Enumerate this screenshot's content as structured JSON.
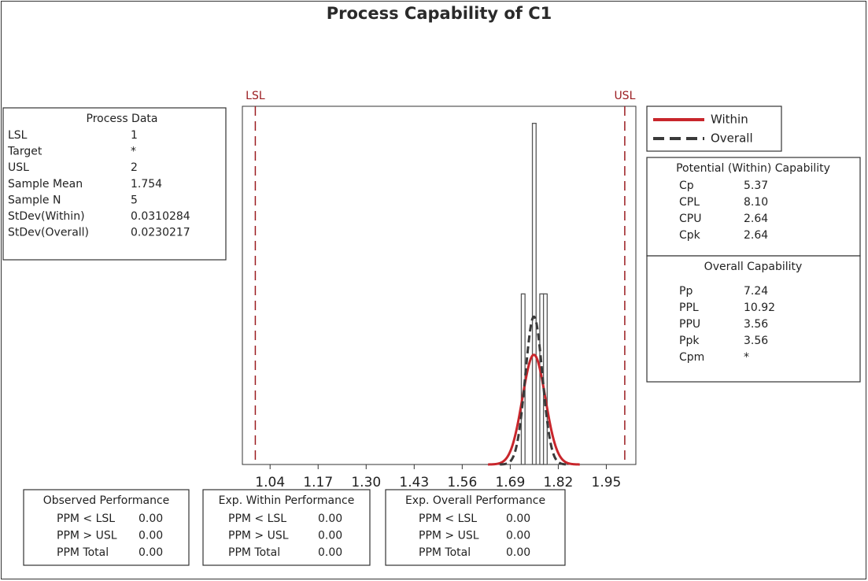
{
  "chart_data": {
    "type": "histogram",
    "title": "Process Capability of C1",
    "bins": [
      1.72,
      1.73,
      1.74,
      1.75,
      1.76,
      1.77,
      1.78,
      1.79
    ],
    "values": [
      1,
      0,
      0,
      2,
      0,
      1,
      1
    ],
    "xlim": [
      0.965,
      2.03
    ],
    "ylim": [
      0,
      2.1
    ],
    "xticks": [
      1.04,
      1.17,
      {
        "value": 1.3,
        "label": "1.30"
      },
      1.43,
      1.56,
      1.69,
      1.82,
      1.95
    ],
    "spec_color": "#9b1c20",
    "bar_color": "#555555",
    "series": [
      {
        "name": "Within",
        "color": "#c8262c",
        "dash": false
      },
      {
        "name": "Overall",
        "color": "#3a3a3a",
        "dash": true
      }
    ],
    "process_data": {
      "title": "Process Data",
      "rows": [
        [
          "LSL",
          1
        ],
        [
          "Target",
          "*"
        ],
        [
          "USL",
          2
        ],
        [
          "Sample Mean",
          1.754
        ],
        [
          "Sample N",
          5
        ],
        [
          "StDev(Within)",
          0.0310284
        ],
        [
          "StDev(Overall)",
          0.0230217
        ]
      ]
    },
    "potential": {
      "title": "Potential (Within) Capability",
      "rows": [
        [
          "Cp",
          "5.37"
        ],
        [
          "CPL",
          "8.10"
        ],
        [
          "CPU",
          "2.64"
        ],
        [
          "Cpk",
          "2.64"
        ]
      ]
    },
    "overall": {
      "title": "Overall Capability",
      "rows": [
        [
          "Pp",
          "7.24"
        ],
        [
          "PPL",
          "10.92"
        ],
        [
          "PPU",
          "3.56"
        ],
        [
          "Ppk",
          "3.56"
        ],
        [
          "Cpm",
          "*"
        ]
      ]
    },
    "observed": {
      "title": "Observed Performance",
      "rows": [
        [
          "PPM < LSL",
          "0.00"
        ],
        [
          "PPM > USL",
          "0.00"
        ],
        [
          "PPM Total",
          "0.00"
        ]
      ]
    },
    "exp_within": {
      "title": "Exp. Within Performance",
      "rows": [
        [
          "PPM < LSL",
          "0.00"
        ],
        [
          "PPM > USL",
          "0.00"
        ],
        [
          "PPM Total",
          "0.00"
        ]
      ]
    },
    "exp_overall": {
      "title": "Exp. Overall Performance",
      "rows": [
        [
          "PPM < LSL",
          "0.00"
        ],
        [
          "PPM > USL",
          "0.00"
        ],
        [
          "PPM Total",
          "0.00"
        ]
      ]
    }
  }
}
